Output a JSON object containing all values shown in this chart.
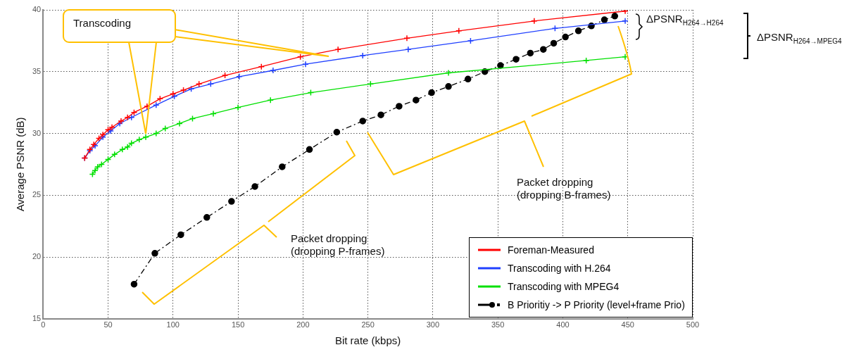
{
  "chart_data": {
    "type": "line",
    "xlabel": "Bit rate (kbps)",
    "ylabel": "Average PSNR (dB)",
    "xlim": [
      0,
      500
    ],
    "xticks": [
      0,
      50,
      100,
      150,
      200,
      250,
      300,
      350,
      400,
      450,
      500
    ],
    "ylim": [
      15,
      40
    ],
    "yticks": [
      15,
      20,
      25,
      30,
      35,
      40
    ],
    "grid": true,
    "legend": "bottom right",
    "series": [
      {
        "name": "Foreman-Measured",
        "color": "#ff0000",
        "marker": "cross",
        "line_style": "solid",
        "x": [
          32,
          36,
          39,
          43,
          46,
          50,
          53,
          60,
          65,
          70,
          80,
          90,
          100,
          108,
          120,
          140,
          168,
          198,
          227,
          280,
          320,
          378,
          448
        ],
        "values": [
          28.0,
          28.7,
          29.1,
          29.6,
          29.9,
          30.3,
          30.5,
          31.0,
          31.3,
          31.7,
          32.2,
          32.8,
          33.2,
          33.5,
          34.0,
          34.7,
          35.4,
          36.2,
          36.8,
          37.7,
          38.3,
          39.1,
          39.9
        ]
      },
      {
        "name": "Transcoding with H.264",
        "color": "#2040ff",
        "marker": "cross",
        "line_style": "solid",
        "x": [
          32,
          36,
          40,
          46,
          52,
          59,
          68,
          87,
          101,
          114,
          129,
          151,
          177,
          202,
          246,
          281,
          329,
          394,
          448
        ],
        "values": [
          28.0,
          28.6,
          29.0,
          29.7,
          30.2,
          30.8,
          31.3,
          32.3,
          33.0,
          33.6,
          34.0,
          34.6,
          35.1,
          35.6,
          36.3,
          36.8,
          37.5,
          38.5,
          39.1
        ]
      },
      {
        "name": "Transcoding with MPEG4",
        "color": "#00e000",
        "marker": "cross",
        "line_style": "solid",
        "x": [
          38,
          40,
          42,
          45,
          50,
          55,
          61,
          65,
          68,
          74,
          79,
          87,
          94,
          105,
          115,
          131,
          150,
          175,
          206,
          252,
          312,
          418,
          448
        ],
        "values": [
          26.7,
          27.0,
          27.3,
          27.5,
          27.9,
          28.3,
          28.7,
          28.9,
          29.2,
          29.5,
          29.7,
          30.0,
          30.4,
          30.8,
          31.2,
          31.6,
          32.1,
          32.7,
          33.3,
          34.0,
          34.9,
          35.9,
          36.2
        ]
      },
      {
        "name": "B Prioritiy -> P Priority (level+frame Prio)",
        "color": "#000000",
        "marker": "circle",
        "line_style": "dashed",
        "x": [
          70,
          86,
          106,
          126,
          145,
          163,
          184,
          205,
          226,
          246,
          260,
          274,
          287,
          299,
          312,
          327,
          340,
          352,
          364,
          375,
          385,
          393,
          402,
          412,
          422,
          432,
          440
        ],
        "values": [
          17.8,
          20.3,
          21.8,
          23.2,
          24.5,
          25.7,
          27.3,
          28.7,
          30.1,
          31.0,
          31.5,
          32.2,
          32.7,
          33.3,
          33.8,
          34.4,
          35.0,
          35.5,
          36.0,
          36.5,
          36.8,
          37.3,
          37.8,
          38.3,
          38.7,
          39.2,
          39.5
        ]
      }
    ],
    "annotations": [
      "Transcoding",
      "Packet dropping\n(dropping B-frames)",
      "Packet dropping\n(dropping P-frames)",
      "ΔPSNR$_{H264→H264}$",
      "ΔPSNR$_{H264→MPEG4}$"
    ]
  }
}
